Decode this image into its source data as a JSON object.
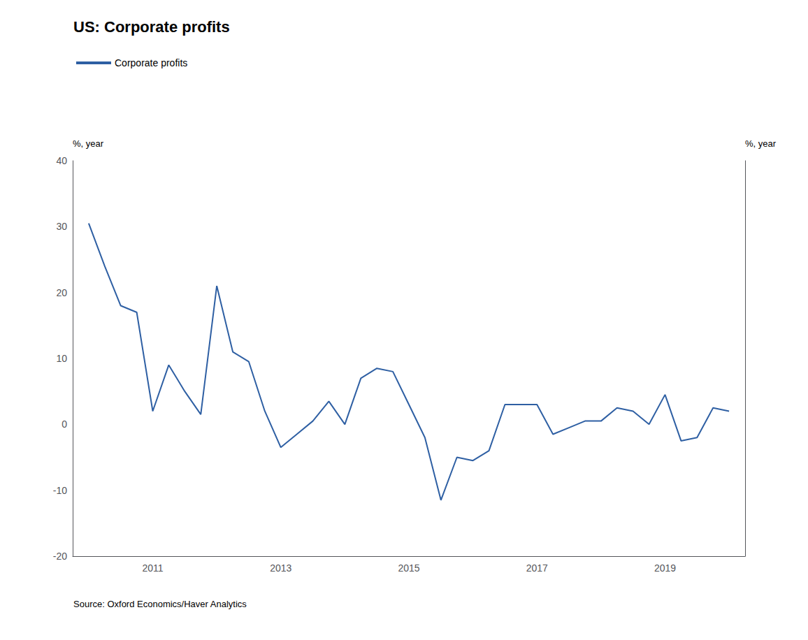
{
  "chart_data": {
    "type": "line",
    "title": "US: Corporate profits",
    "ylabel": "%, year",
    "y2label": "%, year",
    "annotation": "Source: Oxford Economics/Haver Analytics",
    "x": [
      2010.0,
      2010.25,
      2010.5,
      2010.75,
      2011.0,
      2011.25,
      2011.5,
      2011.75,
      2012.0,
      2012.25,
      2012.5,
      2012.75,
      2013.0,
      2013.25,
      2013.5,
      2013.75,
      2014.0,
      2014.25,
      2014.5,
      2014.75,
      2015.0,
      2015.25,
      2015.5,
      2015.75,
      2016.0,
      2016.25,
      2016.5,
      2016.75,
      2017.0,
      2017.25,
      2017.5,
      2017.75,
      2018.0,
      2018.25,
      2018.5,
      2018.75,
      2019.0,
      2019.25,
      2019.5,
      2019.75,
      2020.0
    ],
    "series": [
      {
        "name": "Corporate profits",
        "color": "#2E5FA3",
        "values": [
          30.5,
          24.0,
          18.0,
          17.0,
          2.0,
          9.0,
          5.0,
          1.5,
          21.0,
          11.0,
          9.5,
          2.0,
          -3.5,
          -1.5,
          0.5,
          3.5,
          0.0,
          7.0,
          8.5,
          8.0,
          3.0,
          -2.0,
          -11.5,
          -5.0,
          -5.5,
          -4.0,
          3.0,
          3.0,
          3.0,
          -1.5,
          -0.5,
          0.5,
          0.5,
          2.5,
          2.0,
          0.0,
          4.5,
          -2.5,
          -2.0,
          2.5,
          2.0
        ]
      }
    ],
    "xlim": [
      2009.75,
      2020.25
    ],
    "xticks": [
      2011,
      2013,
      2015,
      2017,
      2019
    ],
    "ylim": [
      -20,
      40
    ],
    "yticks": [
      -20,
      -10,
      0,
      10,
      20,
      30,
      40
    ],
    "grid": false,
    "legend": "upper left"
  }
}
